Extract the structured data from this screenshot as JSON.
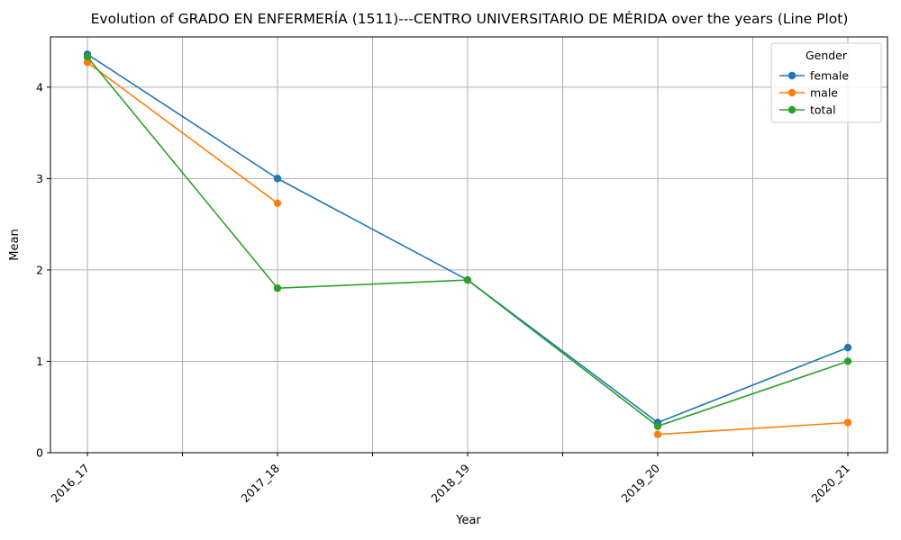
{
  "chart_data": {
    "type": "line",
    "title": "Evolution of GRADO EN ENFERMERÍA (1511)---CENTRO UNIVERSITARIO DE MÉRIDA over the years (Line Plot)",
    "xlabel": "Year",
    "ylabel": "Mean",
    "categories": [
      "2016_17",
      "2017_18",
      "2018_19",
      "2019_20",
      "2020_21"
    ],
    "ylim": [
      0,
      4.55
    ],
    "yticks": [
      0,
      1,
      2,
      3,
      4
    ],
    "grid": true,
    "legend": {
      "title": "Gender",
      "placement": "top-right"
    },
    "series": [
      {
        "name": "female",
        "color": "#1f77b4",
        "values": [
          4.36,
          3.0,
          1.89,
          0.33,
          1.15
        ]
      },
      {
        "name": "male",
        "color": "#ff7f0e",
        "values": [
          4.27,
          2.73,
          null,
          0.2,
          0.33
        ]
      },
      {
        "name": "total",
        "color": "#2ca02c",
        "values": [
          4.33,
          1.8,
          1.89,
          0.29,
          1.0
        ]
      }
    ]
  }
}
